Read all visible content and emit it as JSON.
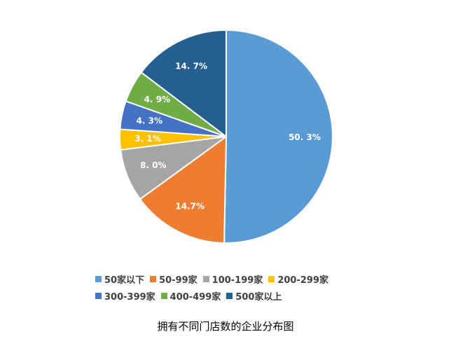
{
  "chart_data": {
    "type": "pie",
    "categories": [
      "50家以下",
      "50-99家",
      "100-199家",
      "200-299家",
      "300-399家",
      "400-499家",
      "500家以上"
    ],
    "values": [
      50.3,
      14.7,
      8.0,
      3.1,
      4.3,
      4.9,
      14.7
    ],
    "data_labels": [
      "50. 3%",
      "14.7%",
      "8. 0%",
      "3. 1%",
      "4. 3%",
      "4. 9%",
      "14. 7%"
    ],
    "colors": [
      "#5b9bd5",
      "#ed7d31",
      "#a5a5a5",
      "#ffc000",
      "#4472c4",
      "#70ad47",
      "#255e91"
    ],
    "start_angle": "12 o'clock",
    "direction": "clockwise",
    "legend_position": "bottom"
  },
  "caption": "拥有不同门店数的企业分布图"
}
